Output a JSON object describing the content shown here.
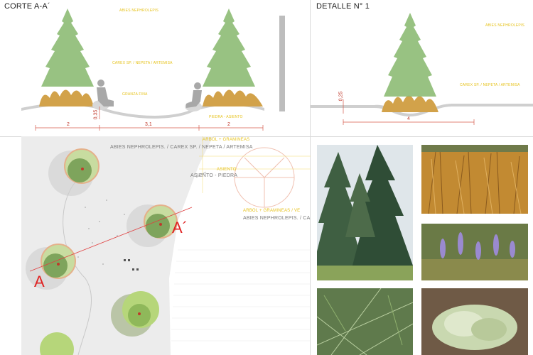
{
  "section": {
    "title": "CORTE A-A´",
    "labels": {
      "tree": "ABIES NEPHROLEPIS",
      "shrubs": "CAREX SP. / NEPETA / ARTEMISA",
      "gravel": "GRANZA FINA",
      "stone": "PIEDRA - ASIENTO"
    },
    "dims": {
      "d1": "2",
      "d2": "3,1",
      "d3": "2",
      "h": "0,35"
    }
  },
  "detail": {
    "title": "DETALLE N° 1",
    "labels": {
      "tree": "ABIES NEPHROLEPIS",
      "shrubs": "CAREX SP. / NEPETA / ARTEMISA"
    },
    "dims": {
      "h": "0,25",
      "w": "4"
    }
  },
  "plan": {
    "labels": {
      "arbol1": "ARBOL + GRAMINEAS",
      "species1": "ABIES NEPHROLEPIS. / CAREX SP. / NEPETA / ARTEMISA",
      "asiento_y": "ASIENTO",
      "asiento": "ASIENTO - PIEDRA",
      "arbol2": "ARBOL + GRAMINEAS / VE",
      "species2": "ABIES NEPHROLEPIS. / CA"
    },
    "markers": {
      "a": "A",
      "a2": "A´"
    }
  },
  "photos": [
    {
      "name": "fir-tree"
    },
    {
      "name": "carex-grass"
    },
    {
      "name": "fir-needles"
    },
    {
      "name": "nepeta-flowers"
    },
    {
      "name": "artemisia"
    }
  ]
}
